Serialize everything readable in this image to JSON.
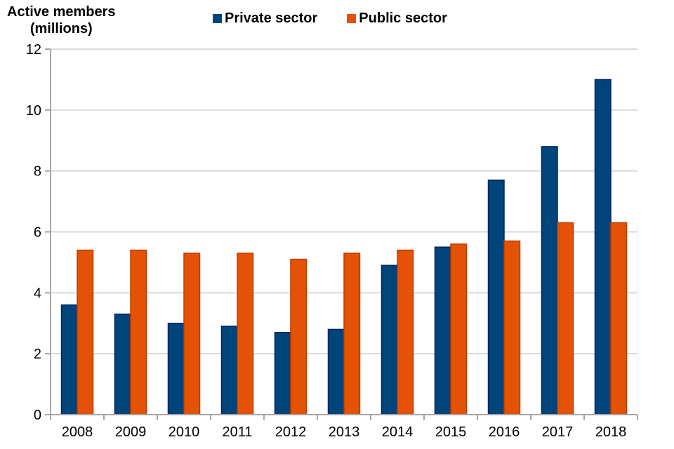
{
  "chart_data": {
    "type": "bar",
    "title_line1": "Active members",
    "title_line2": "(millions)",
    "categories": [
      "2008",
      "2009",
      "2010",
      "2011",
      "2012",
      "2013",
      "2014",
      "2015",
      "2016",
      "2017",
      "2018"
    ],
    "series": [
      {
        "name": "Private sector",
        "color": "#00447C",
        "border": "#00275C",
        "values": [
          3.6,
          3.3,
          3.0,
          2.9,
          2.7,
          2.8,
          4.9,
          5.5,
          7.7,
          8.8,
          11.0
        ]
      },
      {
        "name": "Public sector",
        "color": "#E35205",
        "border": "#BC3D00",
        "values": [
          5.4,
          5.4,
          5.3,
          5.3,
          5.1,
          5.3,
          5.4,
          5.6,
          5.7,
          6.3,
          6.3
        ]
      }
    ],
    "ylim": [
      0,
      12
    ],
    "yticks": [
      0,
      2,
      4,
      6,
      8,
      10,
      12
    ],
    "grid": true,
    "legend_position": "top"
  },
  "colors": {
    "gridline": "#D9D9D9",
    "axis": "#A6A6A6",
    "text": "#000000",
    "background": "#FFFFFF"
  }
}
